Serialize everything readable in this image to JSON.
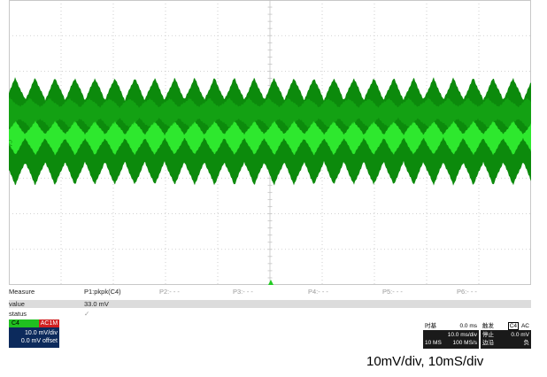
{
  "channel_marker": "C4",
  "measure": {
    "header_label": "Measure",
    "value_label": "value",
    "status_label": "status",
    "params": [
      "P1:pkpk(C4)",
      "P2:- - -",
      "P3:- - -",
      "P4:- - -",
      "P5:- - -",
      "P6:- - -"
    ],
    "p1_value": "33.0 mV",
    "p1_status": "✓"
  },
  "channel_box": {
    "name": "C4",
    "coupling": "AC1M",
    "scale": "10.0 mV/div",
    "offset": "0.0 mV offset"
  },
  "timebase": {
    "title": "时基",
    "delay": "0.0 ms",
    "scale": "10.0 ms/div",
    "samples": "10 MS",
    "rate": "100 MS/s"
  },
  "trigger": {
    "title": "触发",
    "channel": "C4",
    "coupling": "AC",
    "mode": "停止",
    "level": "0.0 mV",
    "type": "边沿",
    "slope": "负"
  },
  "caption": "10mV/div, 10mS/div",
  "colors": {
    "trace_dark": "#0c8a0c",
    "trace_bright": "#2ee82e",
    "grid": "#c4c4c4",
    "channel_bg": "#0c2a5c"
  }
}
